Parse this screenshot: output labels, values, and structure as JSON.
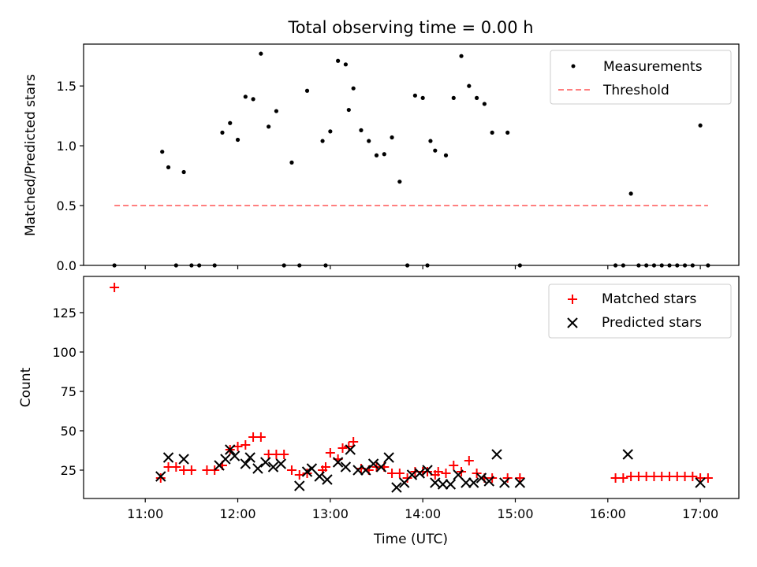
{
  "chart_data": [
    {
      "type": "scatter",
      "title": "Total observing time = 0.00 h",
      "xlabel": "",
      "ylabel": "Matched/Predicted stars",
      "ylim": [
        0,
        1.85
      ],
      "yticks": [
        "0.0",
        "0.5",
        "1.0",
        "1.5"
      ],
      "grid": false,
      "legend_position": "top-right",
      "series": [
        {
          "name": "Measurements",
          "color": "#000000",
          "marker": "dot",
          "x": [
            "10:40",
            "11:11",
            "11:15",
            "11:20",
            "11:25",
            "11:30",
            "11:35",
            "11:45",
            "11:50",
            "11:55",
            "12:00",
            "12:05",
            "12:10",
            "12:15",
            "12:20",
            "12:25",
            "12:30",
            "12:35",
            "12:40",
            "12:45",
            "12:55",
            "12:57",
            "13:00",
            "13:05",
            "13:10",
            "13:12",
            "13:15",
            "13:20",
            "13:25",
            "13:30",
            "13:35",
            "13:40",
            "13:45",
            "13:50",
            "13:55",
            "14:00",
            "14:03",
            "14:05",
            "14:08",
            "14:15",
            "14:20",
            "14:25",
            "14:30",
            "14:35",
            "14:40",
            "14:45",
            "14:55",
            "15:03",
            "16:05",
            "16:10",
            "16:15",
            "16:20",
            "16:25",
            "16:30",
            "16:35",
            "16:40",
            "16:45",
            "16:50",
            "16:55",
            "17:00",
            "17:05"
          ],
          "y": [
            0.0,
            0.95,
            0.82,
            0.0,
            0.78,
            0.0,
            0.0,
            0.0,
            1.11,
            1.19,
            1.05,
            1.41,
            1.39,
            1.77,
            1.16,
            1.29,
            0.0,
            0.86,
            0.0,
            1.46,
            1.04,
            0.0,
            1.12,
            1.71,
            1.68,
            1.3,
            1.48,
            1.13,
            1.04,
            0.92,
            0.93,
            1.07,
            0.7,
            0.0,
            1.42,
            1.4,
            0.0,
            1.04,
            0.96,
            0.92,
            1.4,
            1.75,
            1.5,
            1.4,
            1.35,
            1.11,
            1.11,
            0.0,
            0.0,
            0.0,
            0.6,
            0.0,
            0.0,
            0.0,
            0.0,
            0.0,
            0.0,
            0.0,
            0.0,
            1.17,
            0.0
          ]
        },
        {
          "name": "Threshold",
          "color": "#ff7f7f",
          "style": "dashed",
          "x": [
            "10:40",
            "17:05"
          ],
          "y": [
            0.5,
            0.5
          ]
        }
      ]
    },
    {
      "type": "scatter",
      "title": "",
      "xlabel": "Time (UTC)",
      "ylabel": "Count",
      "ylim": [
        7,
        148
      ],
      "yticks": [
        "25",
        "50",
        "75",
        "100",
        "125"
      ],
      "xticks": [
        "11:00",
        "12:00",
        "13:00",
        "14:00",
        "15:00",
        "16:00",
        "17:00"
      ],
      "xlim": [
        "10:20",
        "17:25"
      ],
      "grid": false,
      "legend_position": "top-right",
      "series": [
        {
          "name": "Matched stars",
          "color": "#ff0000",
          "marker": "plus",
          "x": [
            "10:40",
            "11:10",
            "11:15",
            "11:20",
            "11:25",
            "11:30",
            "11:40",
            "11:45",
            "11:50",
            "11:55",
            "12:00",
            "12:05",
            "12:10",
            "12:15",
            "12:20",
            "12:25",
            "12:30",
            "12:35",
            "12:40",
            "12:45",
            "12:55",
            "12:57",
            "13:00",
            "13:05",
            "13:08",
            "13:12",
            "13:15",
            "13:20",
            "13:25",
            "13:30",
            "13:35",
            "13:40",
            "13:45",
            "13:50",
            "13:55",
            "14:00",
            "14:03",
            "14:08",
            "14:10",
            "14:15",
            "14:20",
            "14:25",
            "14:30",
            "14:35",
            "14:40",
            "14:45",
            "14:55",
            "15:03",
            "16:05",
            "16:10",
            "16:15",
            "16:20",
            "16:25",
            "16:30",
            "16:35",
            "16:40",
            "16:45",
            "16:50",
            "16:55",
            "17:00",
            "17:05"
          ],
          "y": [
            141,
            20,
            27,
            27,
            25,
            25,
            25,
            25,
            28,
            38,
            40,
            41,
            46,
            46,
            35,
            35,
            35,
            25,
            22,
            23,
            25,
            27,
            36,
            32,
            39,
            40,
            43,
            26,
            25,
            27,
            27,
            23,
            23,
            20,
            24,
            24,
            24,
            22,
            24,
            23,
            28,
            24,
            31,
            23,
            20,
            20,
            20,
            20,
            20,
            20,
            21,
            21,
            21,
            21,
            21,
            21,
            21,
            21,
            21,
            20,
            20
          ]
        },
        {
          "name": "Predicted stars",
          "color": "#000000",
          "marker": "x",
          "x": [
            "11:10",
            "11:15",
            "11:25",
            "11:48",
            "11:52",
            "11:55",
            "11:58",
            "12:05",
            "12:08",
            "12:13",
            "12:18",
            "12:23",
            "12:28",
            "12:40",
            "12:45",
            "12:48",
            "12:53",
            "12:58",
            "13:05",
            "13:10",
            "13:13",
            "13:18",
            "13:23",
            "13:28",
            "13:33",
            "13:38",
            "13:43",
            "13:48",
            "13:53",
            "13:58",
            "14:03",
            "14:08",
            "14:13",
            "14:18",
            "14:23",
            "14:28",
            "14:33",
            "14:38",
            "14:43",
            "14:48",
            "14:53",
            "15:03",
            "16:13",
            "17:00"
          ],
          "y": [
            21,
            33,
            32,
            28,
            32,
            38,
            34,
            29,
            33,
            26,
            30,
            27,
            29,
            15,
            24,
            26,
            21,
            19,
            30,
            27,
            38,
            25,
            25,
            29,
            27,
            33,
            14,
            17,
            22,
            23,
            25,
            17,
            16,
            16,
            22,
            17,
            17,
            20,
            18,
            35,
            17,
            17,
            35,
            17
          ]
        }
      ]
    }
  ]
}
